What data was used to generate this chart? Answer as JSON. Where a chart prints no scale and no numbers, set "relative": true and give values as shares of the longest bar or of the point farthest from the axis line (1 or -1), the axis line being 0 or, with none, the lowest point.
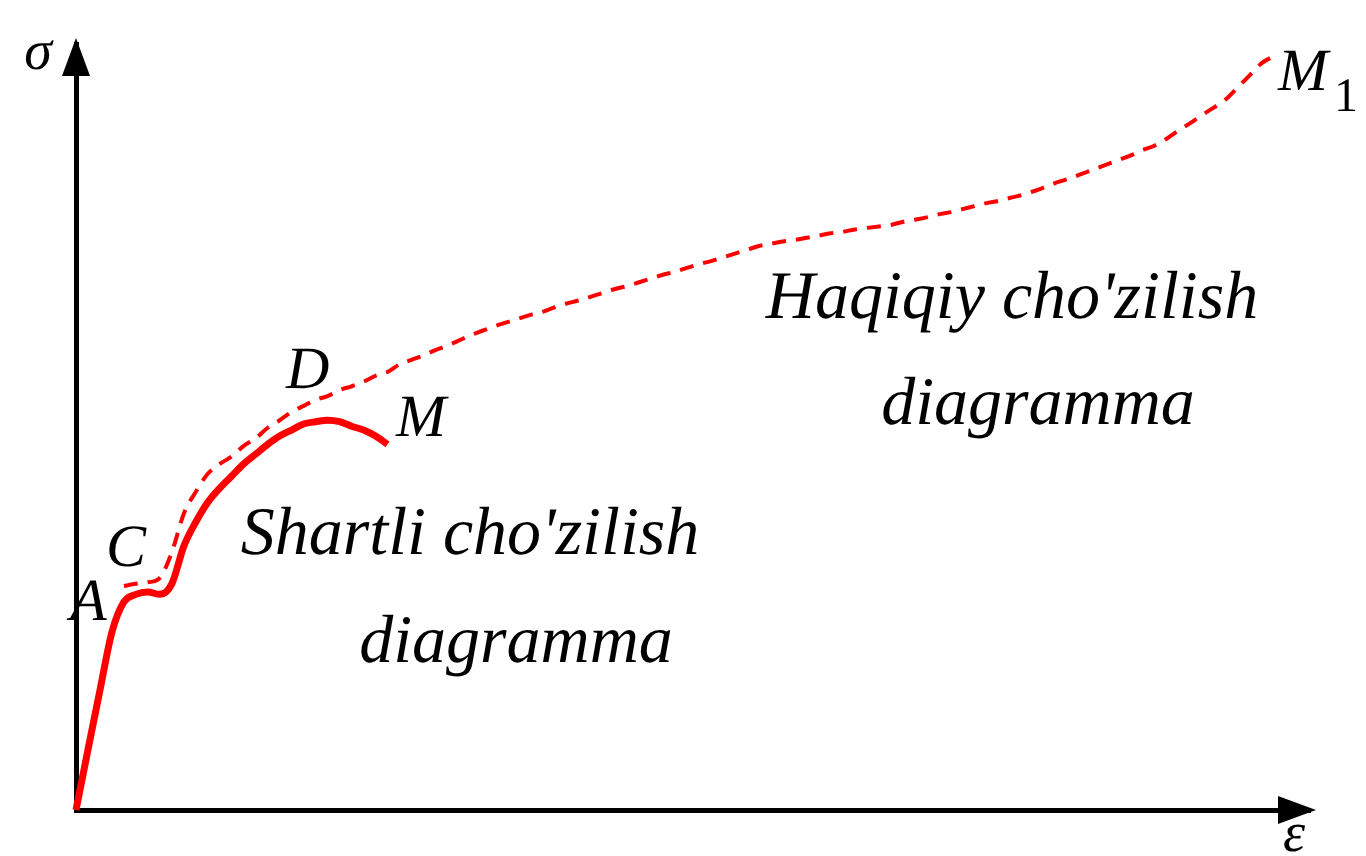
{
  "chart_data": {
    "type": "line",
    "xlabel": "ε",
    "ylabel": "σ",
    "relative": true,
    "tick_labels": false,
    "legend": false,
    "marker": "none",
    "categories": [
      null,
      null,
      null,
      null,
      null,
      null,
      null,
      null,
      null,
      null,
      null,
      null,
      null,
      null,
      null,
      null,
      null,
      null,
      null,
      null,
      null,
      null,
      null,
      null,
      null,
      null,
      null,
      null,
      null,
      null,
      null,
      null,
      null,
      null,
      null,
      null,
      null,
      null,
      null,
      null,
      null,
      null,
      null,
      null,
      null,
      null,
      null,
      null,
      null,
      null,
      null,
      null,
      null,
      null,
      null,
      null,
      null,
      null,
      null,
      null,
      null,
      null,
      null,
      null,
      null,
      null,
      null,
      null,
      null,
      null,
      null,
      null,
      null,
      null,
      null,
      null,
      null,
      null,
      null,
      null,
      null,
      null,
      null,
      null,
      null,
      null,
      null,
      null,
      null,
      null,
      null,
      null,
      null,
      null,
      null,
      null,
      null,
      null,
      null,
      null,
      null,
      null,
      null,
      null
    ],
    "series": [
      {
        "name": "Shartli cho'zilish diagramma",
        "color": "#ff0000",
        "line_style": "solid",
        "values": [
          0,
          0.08,
          0.159,
          0.236,
          0.276,
          0.286,
          0.289,
          0.286,
          0.3,
          0.35,
          0.382,
          0.408,
          0.427,
          0.443,
          0.459,
          0.472,
          0.485,
          0.496,
          0.504,
          0.512,
          0.515,
          0.517,
          0.515,
          0.509,
          0.504,
          0.496,
          0.485,
          null,
          null,
          null,
          null,
          null,
          null,
          null,
          null,
          null,
          null,
          null,
          null,
          null,
          null,
          null,
          null,
          null,
          null,
          null,
          null,
          null,
          null,
          null,
          null,
          null,
          null,
          null,
          null,
          null,
          null,
          null,
          null,
          null,
          null,
          null,
          null,
          null,
          null,
          null,
          null,
          null,
          null,
          null,
          null,
          null,
          null,
          null,
          null,
          null,
          null,
          null,
          null,
          null,
          null,
          null,
          null,
          null,
          null,
          null,
          null,
          null,
          null,
          null,
          null,
          null,
          null,
          null,
          null,
          null,
          null,
          null,
          null,
          null,
          null,
          null,
          null,
          null
        ]
      },
      {
        "name": "Haqiqiy cho'zilish diagramma",
        "color": "#ff0000",
        "line_style": "dashed",
        "values": [
          null,
          null,
          null,
          null,
          0.297,
          0.3,
          0.302,
          0.308,
          0.342,
          0.393,
          0.422,
          0.446,
          0.459,
          0.469,
          0.483,
          0.493,
          0.507,
          0.517,
          0.528,
          0.536,
          0.544,
          0.549,
          0.557,
          0.562,
          0.568,
          0.576,
          0.581,
          0.591,
          0.597,
          0.603,
          0.61,
          0.616,
          0.623,
          0.63,
          0.636,
          0.642,
          0.647,
          0.652,
          0.657,
          0.661,
          0.667,
          0.672,
          0.676,
          0.681,
          0.686,
          0.691,
          0.695,
          0.7,
          0.705,
          0.71,
          0.714,
          0.719,
          0.724,
          0.728,
          0.733,
          0.738,
          0.743,
          0.748,
          0.751,
          0.754,
          0.756,
          0.759,
          0.762,
          0.765,
          0.767,
          0.77,
          0.772,
          0.774,
          0.776,
          0.78,
          0.783,
          0.786,
          0.79,
          0.793,
          0.797,
          0.801,
          0.805,
          0.808,
          0.812,
          0.816,
          0.821,
          0.827,
          0.833,
          0.838,
          0.844,
          0.85,
          0.856,
          0.862,
          0.868,
          0.875,
          0.881,
          0.89,
          0.901,
          0.911,
          0.922,
          0.932,
          0.943,
          0.959,
          0.975,
          0.991,
          1,
          null,
          null,
          null
        ]
      }
    ],
    "annotations": [
      "A",
      "C",
      "D",
      "M",
      "M$_{1}$"
    ]
  }
}
